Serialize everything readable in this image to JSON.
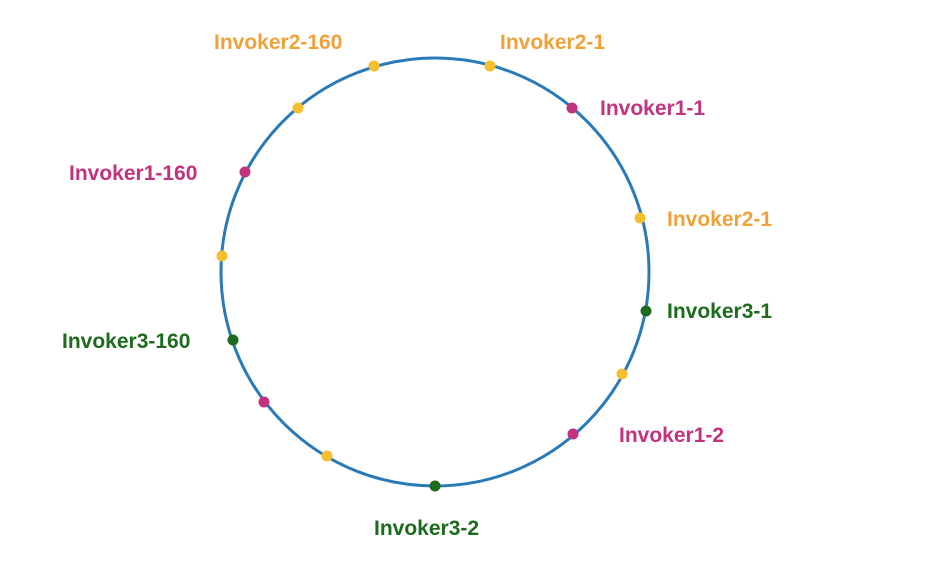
{
  "diagram": {
    "colors": {
      "ring": "#2a7ab8",
      "invoker1": "#c2337f",
      "invoker2": "#f0a23a",
      "invoker2_dot": "#f5bf2f",
      "invoker3": "#1d6b1d"
    },
    "labels": {
      "invoker2_160": "Invoker2-160",
      "invoker2_1_top": "Invoker2-1",
      "invoker1_1": "Invoker1-1",
      "invoker2_1_right": "Invoker2-1",
      "invoker3_1": "Invoker3-1",
      "invoker1_2": "Invoker1-2",
      "invoker3_2": "Invoker3-2",
      "invoker3_160": "Invoker3-160",
      "invoker1_160": "Invoker1-160"
    }
  }
}
